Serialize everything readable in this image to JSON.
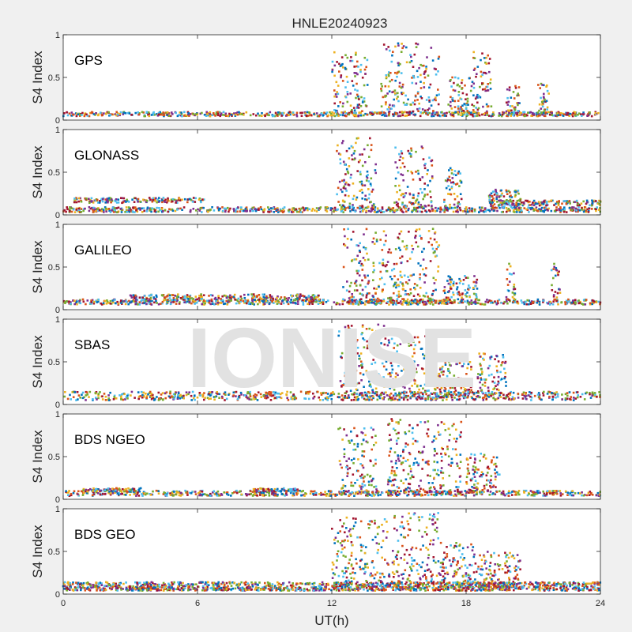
{
  "figure": {
    "title": "HNLE20240923",
    "watermark": "IONISE",
    "background_color": "#f0f0f0",
    "axes_color": "#ffffff",
    "watermark_color": "#e2e2e2"
  },
  "palette": [
    "#0072bd",
    "#d95319",
    "#edb120",
    "#7e2f8e",
    "#77ac30",
    "#4dbeee",
    "#a2142f"
  ],
  "chart_data": [
    {
      "type": "scatter",
      "panel": "GPS",
      "xlabel": "",
      "ylabel": "S4 Index",
      "xlim": [
        0,
        24
      ],
      "ylim": [
        0,
        1
      ],
      "xticks": [
        0,
        6,
        12,
        18,
        24
      ],
      "xtick_labels_shown": false,
      "yticks": [
        0,
        0.5,
        1
      ],
      "ytick_labels": [
        "0",
        "0.5",
        "1"
      ],
      "grid": false,
      "quiet_regions": [
        {
          "start": 0,
          "end": 24,
          "level": 0.07,
          "spread": 0.025
        }
      ],
      "enhancements": [
        {
          "start": 12.0,
          "end": 13.6,
          "peak": 0.8
        },
        {
          "start": 14.2,
          "end": 16.8,
          "peak": 0.9
        },
        {
          "start": 17.2,
          "end": 18.3,
          "peak": 0.5
        },
        {
          "start": 18.3,
          "end": 19.2,
          "peak": 0.8
        },
        {
          "start": 19.8,
          "end": 20.4,
          "peak": 0.4
        },
        {
          "start": 21.2,
          "end": 21.7,
          "peak": 0.45
        }
      ]
    },
    {
      "type": "scatter",
      "panel": "GLONASS",
      "xlabel": "",
      "ylabel": "S4 Index",
      "xlim": [
        0,
        24
      ],
      "ylim": [
        0,
        1
      ],
      "xticks": [
        0,
        6,
        12,
        18,
        24
      ],
      "xtick_labels_shown": false,
      "yticks": [
        0,
        0.5,
        1
      ],
      "ytick_labels": [
        "0",
        "0.5",
        "1"
      ],
      "grid": false,
      "quiet_regions": [
        {
          "start": 0,
          "end": 24,
          "level": 0.06,
          "spread": 0.03
        },
        {
          "start": 0.5,
          "end": 6.3,
          "level": 0.17,
          "spread": 0.03
        },
        {
          "start": 19.5,
          "end": 24,
          "level": 0.14,
          "spread": 0.03
        }
      ],
      "enhancements": [
        {
          "start": 12.2,
          "end": 14.0,
          "peak": 0.9
        },
        {
          "start": 14.8,
          "end": 16.5,
          "peak": 0.8
        },
        {
          "start": 17.0,
          "end": 17.8,
          "peak": 0.55
        },
        {
          "start": 19.0,
          "end": 20.5,
          "peak": 0.3
        }
      ]
    },
    {
      "type": "scatter",
      "panel": "GALILEO",
      "xlabel": "",
      "ylabel": "S4 Index",
      "xlim": [
        0,
        24
      ],
      "ylim": [
        0,
        1
      ],
      "xticks": [
        0,
        6,
        12,
        18,
        24
      ],
      "xtick_labels_shown": false,
      "yticks": [
        0,
        0.5,
        1
      ],
      "ytick_labels": [
        "0",
        "0.5",
        "1"
      ],
      "grid": false,
      "quiet_regions": [
        {
          "start": 0,
          "end": 24,
          "level": 0.09,
          "spread": 0.03
        },
        {
          "start": 3.0,
          "end": 11.5,
          "level": 0.14,
          "spread": 0.04
        }
      ],
      "enhancements": [
        {
          "start": 12.5,
          "end": 16.8,
          "peak": 0.95
        },
        {
          "start": 17.0,
          "end": 18.5,
          "peak": 0.4
        },
        {
          "start": 19.8,
          "end": 20.2,
          "peak": 0.55
        },
        {
          "start": 21.8,
          "end": 22.2,
          "peak": 0.55
        }
      ]
    },
    {
      "type": "scatter",
      "panel": "SBAS",
      "xlabel": "",
      "ylabel": "S4 Index",
      "xlim": [
        0,
        24
      ],
      "ylim": [
        0,
        1
      ],
      "xticks": [
        0,
        6,
        12,
        18,
        24
      ],
      "xtick_labels_shown": false,
      "yticks": [
        0,
        0.5,
        1
      ],
      "ytick_labels": [
        "0",
        "0.5",
        "1"
      ],
      "grid": false,
      "quiet_regions": [
        {
          "start": 0,
          "end": 24,
          "level": 0.1,
          "spread": 0.05
        }
      ],
      "enhancements": [
        {
          "start": 12.3,
          "end": 14.5,
          "peak": 0.95
        },
        {
          "start": 14.5,
          "end": 16.5,
          "peak": 0.8
        },
        {
          "start": 16.5,
          "end": 18.3,
          "peak": 0.5
        },
        {
          "start": 18.5,
          "end": 19.8,
          "peak": 0.6
        }
      ]
    },
    {
      "type": "scatter",
      "panel": "BDS NGEO",
      "xlabel": "",
      "ylabel": "S4 Index",
      "xlim": [
        0,
        24
      ],
      "ylim": [
        0,
        1
      ],
      "xticks": [
        0,
        6,
        12,
        18,
        24
      ],
      "xtick_labels_shown": false,
      "yticks": [
        0,
        0.5,
        1
      ],
      "ytick_labels": [
        "0",
        "0.5",
        "1"
      ],
      "grid": false,
      "quiet_regions": [
        {
          "start": 0,
          "end": 24,
          "level": 0.07,
          "spread": 0.03
        },
        {
          "start": 0.8,
          "end": 3.5,
          "level": 0.11,
          "spread": 0.02
        },
        {
          "start": 8.5,
          "end": 10.5,
          "level": 0.11,
          "spread": 0.02
        }
      ],
      "enhancements": [
        {
          "start": 12.3,
          "end": 14.0,
          "peak": 0.85
        },
        {
          "start": 14.5,
          "end": 16.5,
          "peak": 0.95
        },
        {
          "start": 16.5,
          "end": 17.8,
          "peak": 0.95
        },
        {
          "start": 18.0,
          "end": 19.5,
          "peak": 0.55
        }
      ]
    },
    {
      "type": "scatter",
      "panel": "BDS GEO",
      "xlabel": "UT(h)",
      "ylabel": "S4 Index",
      "xlim": [
        0,
        24
      ],
      "ylim": [
        0,
        1
      ],
      "xticks": [
        0,
        6,
        12,
        18,
        24
      ],
      "xtick_labels_shown": true,
      "xtick_labels": [
        "0",
        "6",
        "12",
        "18",
        "24"
      ],
      "yticks": [
        0,
        0.5,
        1
      ],
      "ytick_labels": [
        "0",
        "0.5",
        "1"
      ],
      "grid": false,
      "quiet_regions": [
        {
          "start": 0,
          "end": 24,
          "level": 0.11,
          "spread": 0.03
        },
        {
          "start": 0,
          "end": 24,
          "level": 0.06,
          "spread": 0.02
        }
      ],
      "enhancements": [
        {
          "start": 12.0,
          "end": 14.5,
          "peak": 0.9
        },
        {
          "start": 14.5,
          "end": 16.8,
          "peak": 0.95
        },
        {
          "start": 16.8,
          "end": 18.5,
          "peak": 0.6
        },
        {
          "start": 18.5,
          "end": 20.5,
          "peak": 0.5
        }
      ]
    }
  ]
}
